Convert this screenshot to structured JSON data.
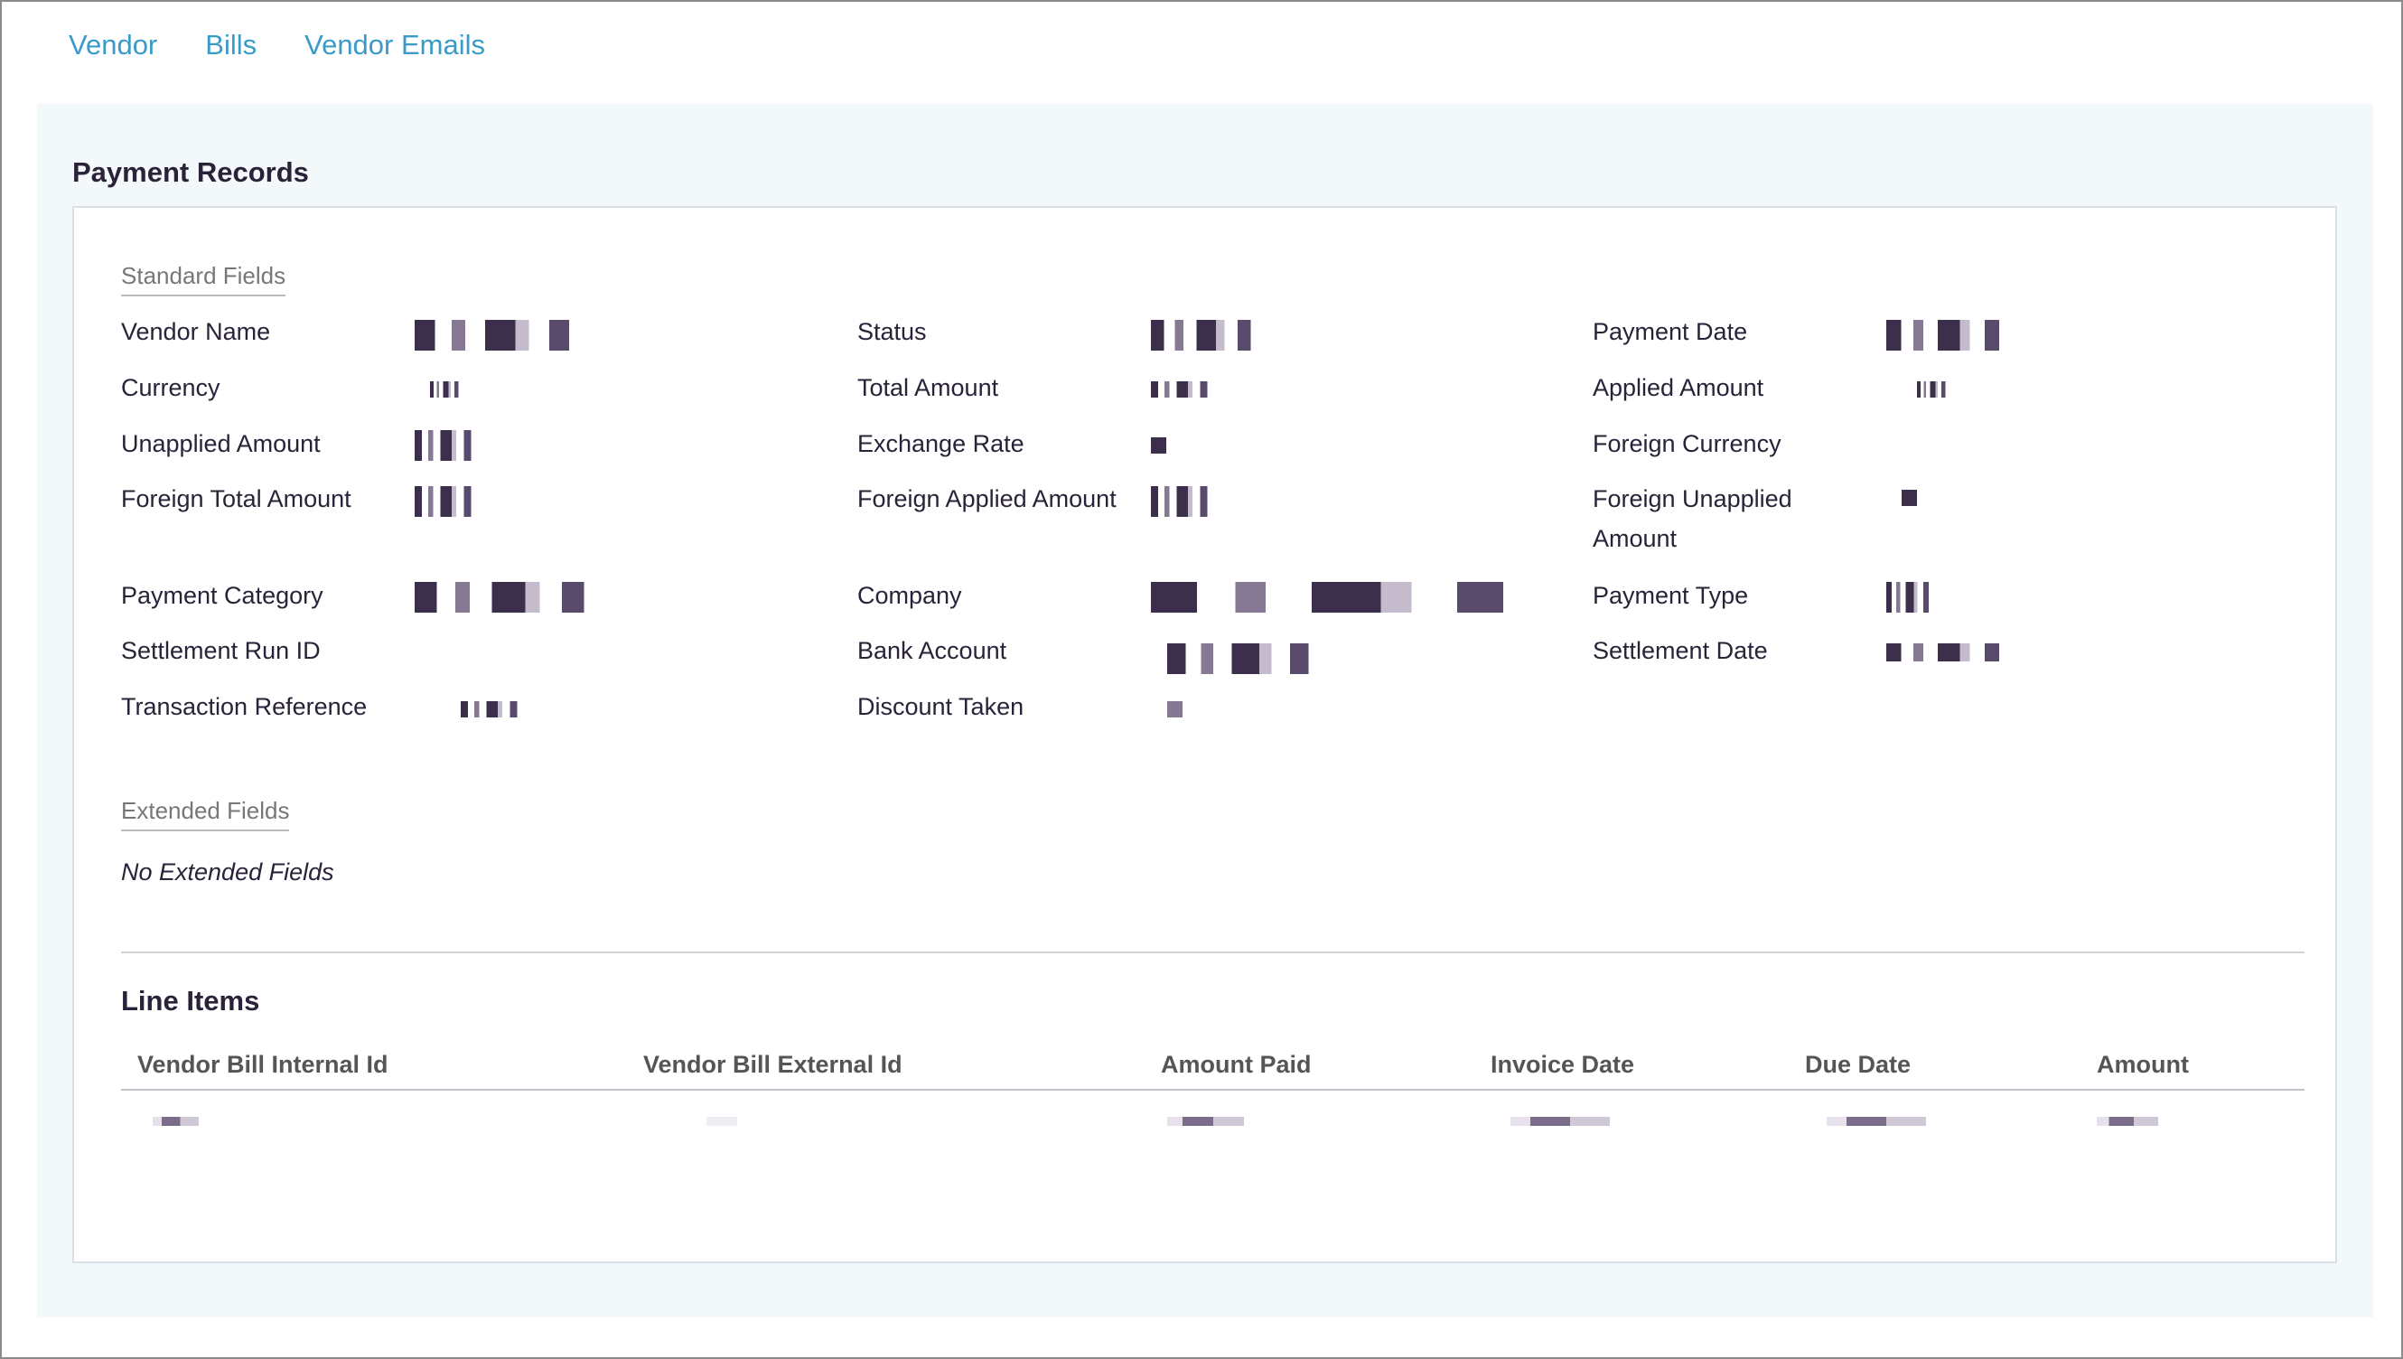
{
  "tabs": [
    {
      "label": "Vendor"
    },
    {
      "label": "Bills"
    },
    {
      "label": "Vendor Emails"
    }
  ],
  "panel": {
    "title": "Payment Records",
    "standard_fields_label": "Standard Fields",
    "fields": [
      {
        "label": "Vendor Name"
      },
      {
        "label": "Status"
      },
      {
        "label": "Payment Date"
      },
      {
        "label": "Currency"
      },
      {
        "label": "Total Amount"
      },
      {
        "label": "Applied Amount"
      },
      {
        "label": "Unapplied Amount"
      },
      {
        "label": "Exchange Rate"
      },
      {
        "label": "Foreign Currency"
      },
      {
        "label": "Foreign Total Amount"
      },
      {
        "label": "Foreign Applied Amount"
      },
      {
        "label": "Foreign Unapplied Amount"
      },
      {
        "label": "Payment Category"
      },
      {
        "label": "Company"
      },
      {
        "label": "Payment Type"
      },
      {
        "label": "Settlement Run ID"
      },
      {
        "label": "Bank Account"
      },
      {
        "label": "Settlement Date"
      },
      {
        "label": "Transaction Reference"
      },
      {
        "label": "Discount Taken"
      }
    ],
    "extended_fields_label": "Extended Fields",
    "no_extended_fields": "No Extended Fields",
    "line_items": {
      "title": "Line Items",
      "columns": [
        "Vendor Bill Internal Id",
        "Vendor Bill External Id",
        "Amount Paid",
        "Invoice Date",
        "Due Date",
        "Amount"
      ]
    }
  },
  "colors": {
    "link": "#3a9bc8",
    "text": "#2a2238",
    "panel_bg": "#f3f8fb"
  }
}
